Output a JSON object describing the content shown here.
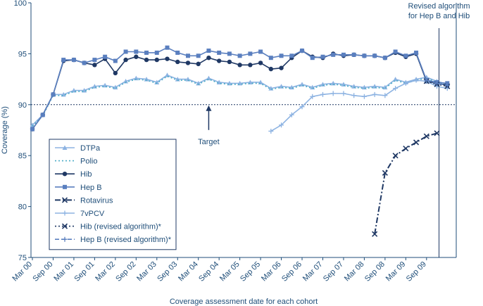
{
  "chart_data": {
    "type": "line",
    "title": "",
    "xlabel": "Coverage assessment date for each cohort",
    "ylabel": "Coverage (%)",
    "ylim": [
      75,
      100
    ],
    "yticks": [
      75,
      80,
      85,
      90,
      95,
      100
    ],
    "grid": false,
    "legend_position": "bottom-left",
    "categories": [
      "Mar 00",
      "Sep 00",
      "Mar 01",
      "Sep 01",
      "Mar 02",
      "Sep 02",
      "Mar 03",
      "Sep 03",
      "Mar 04",
      "Sep 04",
      "Mar 05",
      "Sep 05",
      "Mar 06",
      "Sep 06",
      "Mar 07",
      "Sep 07",
      "Mar 08",
      "Sep 08",
      "Mar 09",
      "Sep 09"
    ],
    "target": {
      "value": 90,
      "label": "Target"
    },
    "annotation": {
      "text_lines": [
        "Revised algorithm",
        "for Hep B and Hib"
      ],
      "x": 39
    },
    "series": [
      {
        "name": "DTPa",
        "color": "#8db3e2",
        "marker": "triangle",
        "dash": "solid",
        "x": [
          0,
          1,
          2,
          3,
          4,
          5,
          6,
          7,
          8,
          9,
          10,
          11,
          12,
          13,
          14,
          15,
          16,
          17,
          18,
          19,
          20,
          21,
          22,
          23,
          24,
          25,
          26,
          27,
          28,
          29,
          30,
          31,
          32,
          33,
          34,
          35,
          36,
          37,
          38,
          39,
          40
        ],
        "y": [
          88.0,
          89.0,
          91.0,
          91.0,
          91.4,
          91.4,
          91.8,
          91.9,
          91.7,
          92.3,
          92.6,
          92.5,
          92.2,
          92.9,
          92.5,
          92.5,
          92.1,
          92.6,
          92.2,
          92.1,
          92.1,
          92.2,
          92.2,
          91.6,
          91.8,
          91.7,
          92.0,
          91.7,
          92.0,
          92.1,
          92.0,
          91.8,
          91.7,
          91.8,
          91.7,
          92.5,
          92.2,
          92.5,
          92.7,
          92.3,
          92.0
        ]
      },
      {
        "name": "Polio",
        "color": "#4bacc6",
        "marker": "none",
        "dash": "dotted",
        "x": [
          0,
          1,
          2,
          3,
          4,
          5,
          6,
          7,
          8,
          9,
          10,
          11,
          12,
          13,
          14,
          15,
          16,
          17,
          18,
          19,
          20,
          21,
          22,
          23,
          24,
          25,
          26,
          27,
          28,
          29,
          30,
          31,
          32,
          33,
          34,
          35,
          36,
          37,
          38,
          39,
          40
        ],
        "y": [
          87.9,
          88.9,
          90.9,
          90.9,
          91.3,
          91.3,
          91.7,
          91.8,
          91.6,
          92.2,
          92.5,
          92.4,
          92.1,
          92.8,
          92.4,
          92.4,
          92.0,
          92.5,
          92.1,
          92.0,
          92.0,
          92.1,
          92.1,
          91.5,
          91.7,
          91.6,
          91.9,
          91.6,
          91.9,
          92.0,
          91.9,
          91.7,
          91.6,
          91.7,
          91.6,
          92.4,
          92.1,
          92.4,
          92.6,
          92.2,
          91.9
        ]
      },
      {
        "name": "Hib",
        "color": "#1f3864",
        "marker": "circle",
        "dash": "solid",
        "x": [
          0,
          1,
          2,
          3,
          4,
          5,
          6,
          7,
          8,
          9,
          10,
          11,
          12,
          13,
          14,
          15,
          16,
          17,
          18,
          19,
          20,
          21,
          22,
          23,
          24,
          25,
          26,
          27,
          28,
          29,
          30,
          31,
          32,
          33,
          34,
          35,
          36,
          37,
          38,
          39,
          40
        ],
        "y": [
          87.6,
          89.0,
          91.0,
          94.3,
          94.4,
          94.1,
          93.9,
          94.5,
          93.1,
          94.4,
          94.7,
          94.4,
          94.4,
          94.5,
          94.2,
          94.1,
          94.0,
          94.6,
          94.3,
          94.2,
          93.9,
          93.9,
          94.1,
          93.5,
          93.6,
          94.6,
          95.3,
          94.7,
          94.6,
          95.0,
          94.8,
          94.9,
          94.8,
          94.8,
          94.6,
          95.1,
          94.7,
          95.0,
          92.3,
          92.1,
          91.9
        ]
      },
      {
        "name": "Hep B",
        "color": "#5a7fbf",
        "marker": "square",
        "dash": "solid",
        "x": [
          0,
          1,
          2,
          3,
          4,
          5,
          6,
          7,
          8,
          9,
          10,
          11,
          12,
          13,
          14,
          15,
          16,
          17,
          18,
          19,
          20,
          21,
          22,
          23,
          24,
          25,
          26,
          27,
          28,
          29,
          30,
          31,
          32,
          33,
          34,
          35,
          36,
          37,
          38,
          39,
          40
        ],
        "y": [
          87.6,
          89.0,
          91.0,
          94.4,
          94.4,
          94.1,
          94.4,
          94.7,
          94.3,
          95.2,
          95.2,
          95.1,
          95.1,
          95.6,
          95.1,
          94.8,
          94.8,
          95.3,
          95.1,
          95.0,
          94.8,
          95.0,
          95.2,
          94.6,
          94.8,
          94.8,
          95.3,
          94.6,
          94.7,
          94.9,
          94.9,
          94.9,
          94.8,
          94.8,
          94.6,
          95.2,
          94.8,
          95.1,
          92.4,
          92.2,
          92.1
        ]
      },
      {
        "name": "Rotavirus",
        "color": "#1f3864",
        "marker": "x",
        "dash": "dashdot",
        "x": [
          33,
          34,
          35,
          36,
          37,
          38,
          39
        ],
        "y": [
          77.3,
          83.3,
          85.0,
          85.7,
          86.3,
          86.9,
          87.2
        ]
      },
      {
        "name": "7vPCV",
        "color": "#8db3e2",
        "marker": "plus",
        "dash": "solid",
        "x": [
          23,
          24,
          25,
          26,
          27,
          28,
          29,
          30,
          31,
          32,
          33,
          34,
          35,
          36,
          37,
          38,
          39,
          40
        ],
        "y": [
          87.4,
          88.0,
          89.0,
          89.8,
          90.8,
          91.0,
          91.1,
          91.1,
          90.9,
          90.8,
          91.0,
          90.9,
          91.6,
          92.1,
          92.4,
          92.3,
          91.8,
          91.6
        ]
      },
      {
        "name": "Hib (revised algorithm)*",
        "color": "#1f3864",
        "marker": "x",
        "dash": "dotted",
        "x": [
          38,
          39,
          40
        ],
        "y": [
          92.3,
          92.0,
          91.8
        ]
      },
      {
        "name": "Hep B (revised algorithm)*",
        "color": "#5a7fbf",
        "marker": "plus",
        "dash": "dashed",
        "x": [
          38,
          39,
          40
        ],
        "y": [
          92.4,
          92.1,
          91.9
        ]
      }
    ]
  }
}
